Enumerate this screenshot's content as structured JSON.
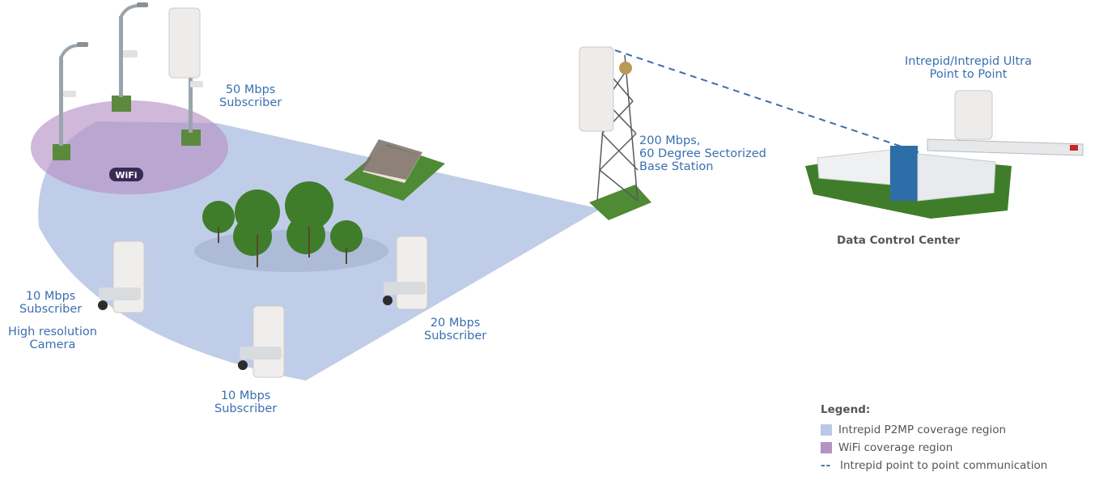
{
  "colors": {
    "p2mp_region": "#b9c8e6",
    "wifi_region": "#b592c4",
    "link": "#3a6fb0",
    "label": "#3a6fb0",
    "dark_text": "#555555"
  },
  "labels": {
    "sub50": [
      "50 Mbps",
      "Subscriber"
    ],
    "base_station": [
      "200 Mbps,",
      "60 Degree Sectorized",
      "Base Station"
    ],
    "p2p": [
      "Intrepid/Intrepid Ultra",
      "Point to Point"
    ],
    "data_center": "Data Control Center",
    "sub10_left": [
      "10 Mbps",
      "Subscriber"
    ],
    "camera": [
      "High resolution",
      "Camera"
    ],
    "sub20": [
      "20 Mbps",
      "Subscriber"
    ],
    "sub10_bottom": [
      "10 Mbps",
      "Subscriber"
    ],
    "wifi_badge": "WiFi"
  },
  "legend": {
    "title": "Legend:",
    "items": [
      {
        "label": "Intrepid P2MP coverage region",
        "kind": "swatch",
        "color": "#b9c8e6"
      },
      {
        "label": "WiFi coverage region",
        "kind": "swatch",
        "color": "#b592c4"
      },
      {
        "label": "Intrepid point to point communication",
        "kind": "dash",
        "symbol": "--"
      }
    ]
  }
}
